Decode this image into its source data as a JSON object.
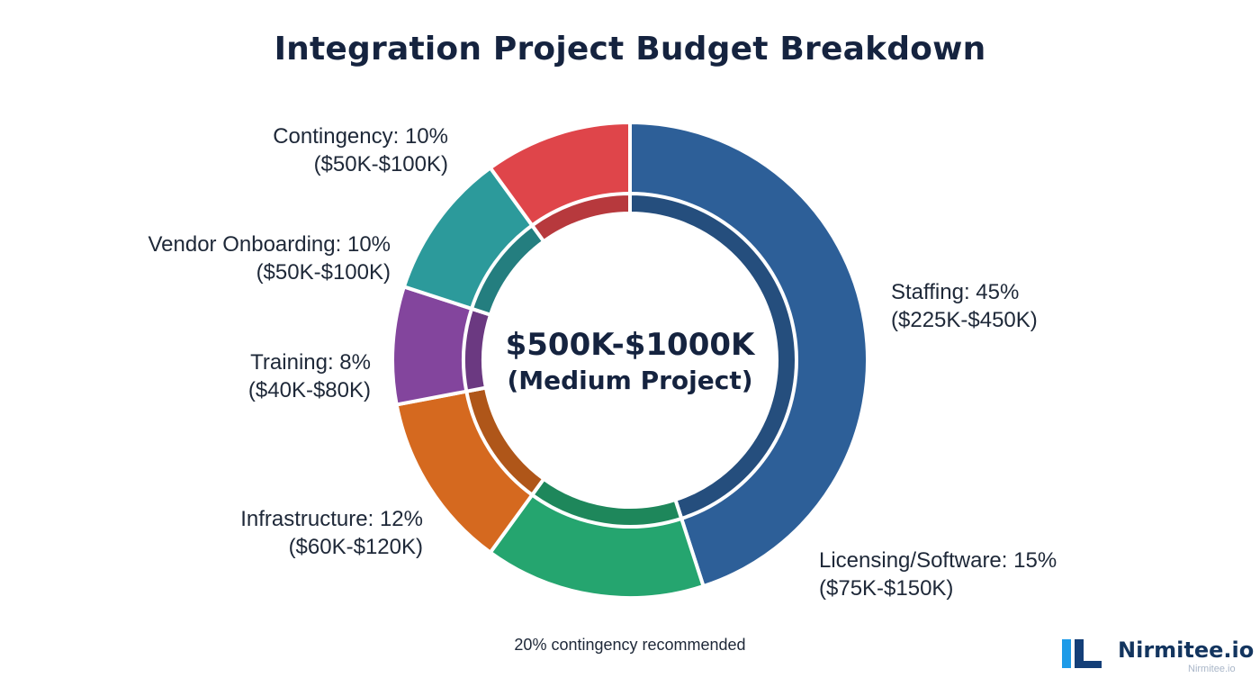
{
  "chart_data": {
    "type": "pie",
    "style": "donut",
    "title": "Integration Project Budget Breakdown",
    "center_label": {
      "amount": "$500K-$1000K",
      "subtitle": "(Medium Project)"
    },
    "slices": [
      {
        "key": "staffing",
        "label": "Staffing: 45%",
        "range": "($225K-$450K)",
        "percent": 45,
        "color": "#2d5f98"
      },
      {
        "key": "licensing",
        "label": "Licensing/Software: 15%",
        "range": "($75K-$150K)",
        "percent": 15,
        "color": "#25a56f"
      },
      {
        "key": "infrastructure",
        "label": "Infrastructure: 12%",
        "range": "($60K-$120K)",
        "percent": 12,
        "color": "#d5691f"
      },
      {
        "key": "training",
        "label": "Training: 8%",
        "range": "($40K-$80K)",
        "percent": 8,
        "color": "#83459d"
      },
      {
        "key": "vendor",
        "label": "Vendor Onboarding: 10%",
        "range": "($50K-$100K)",
        "percent": 10,
        "color": "#2c9a9b"
      },
      {
        "key": "contingency",
        "label": "Contingency: 10%",
        "range": "($50K-$100K)",
        "percent": 10,
        "color": "#df454a"
      }
    ],
    "legend": "none"
  },
  "footnote": "20% contingency recommended",
  "brand": {
    "name": "Nirmitee.io",
    "watermark": "Nirmitee.io",
    "logo_colors": [
      "#1e9be8",
      "#143f78"
    ]
  }
}
